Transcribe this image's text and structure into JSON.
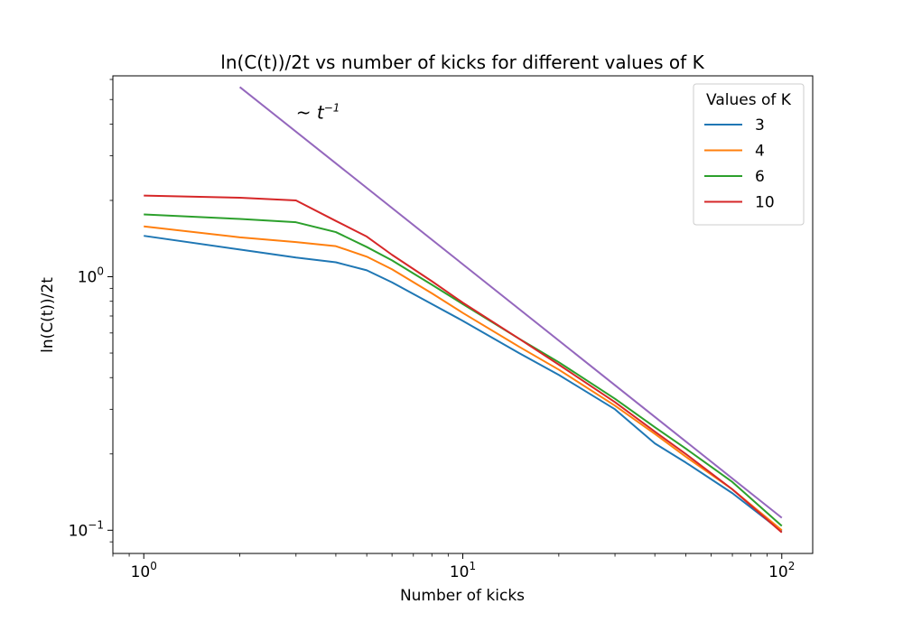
{
  "chart_data": {
    "type": "line",
    "title": "ln(C(t))/2t vs number of kicks for different values of K",
    "xlabel": "Number of kicks",
    "ylabel": "ln(C(t))/2t",
    "xscale": "log",
    "yscale": "log",
    "xlim": [
      0.8,
      125
    ],
    "ylim": [
      0.081,
      6.2
    ],
    "xticks": [
      {
        "value": 1,
        "label": "10^0"
      },
      {
        "value": 10,
        "label": "10^1"
      },
      {
        "value": 100,
        "label": "10^2"
      }
    ],
    "yticks": [
      {
        "value": 0.1,
        "label": "10^-1"
      },
      {
        "value": 1,
        "label": "10^0"
      }
    ],
    "legend": {
      "title": "Values of K",
      "placement": "top-right"
    },
    "annotation": {
      "text": "~ t^-1",
      "x": 3,
      "y": 4.2
    },
    "series": [
      {
        "name": "3",
        "color": "#1f77b4",
        "x": [
          1,
          2,
          3,
          4,
          5,
          6,
          8,
          10,
          15,
          20,
          30,
          40,
          50,
          70,
          100
        ],
        "y": [
          1.45,
          1.28,
          1.19,
          1.14,
          1.06,
          0.95,
          0.78,
          0.67,
          0.5,
          0.41,
          0.3,
          0.22,
          0.185,
          0.14,
          0.099
        ]
      },
      {
        "name": "4",
        "color": "#ff7f0e",
        "x": [
          1,
          2,
          3,
          4,
          5,
          6,
          8,
          10,
          15,
          20,
          30,
          40,
          50,
          70,
          100
        ],
        "y": [
          1.58,
          1.43,
          1.37,
          1.32,
          1.2,
          1.07,
          0.86,
          0.72,
          0.53,
          0.43,
          0.31,
          0.24,
          0.195,
          0.145,
          0.1
        ]
      },
      {
        "name": "6",
        "color": "#2ca02c",
        "x": [
          1,
          2,
          3,
          4,
          5,
          6,
          8,
          10,
          15,
          20,
          30,
          40,
          50,
          70,
          100
        ],
        "y": [
          1.76,
          1.69,
          1.64,
          1.5,
          1.31,
          1.16,
          0.93,
          0.78,
          0.57,
          0.46,
          0.33,
          0.255,
          0.21,
          0.155,
          0.104
        ]
      },
      {
        "name": "10",
        "color": "#d62728",
        "x": [
          1,
          2,
          3,
          4,
          5,
          6,
          8,
          10,
          15,
          20,
          30,
          40,
          50,
          70,
          100
        ],
        "y": [
          2.09,
          2.05,
          2.0,
          1.66,
          1.44,
          1.22,
          0.96,
          0.79,
          0.57,
          0.45,
          0.32,
          0.245,
          0.2,
          0.145,
          0.098
        ]
      },
      {
        "name": "",
        "color": "#9467bd",
        "x": [
          2,
          100
        ],
        "y": [
          5.6,
          0.112
        ]
      }
    ]
  }
}
